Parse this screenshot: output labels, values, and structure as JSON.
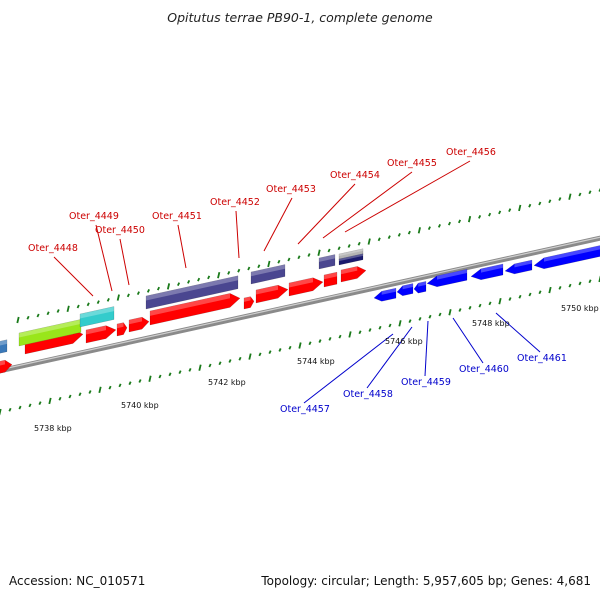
{
  "title": "Opitutus terrae PB90-1, complete genome",
  "accession_label": "Accession:",
  "accession_value": "NC_010571",
  "topology": {
    "label": "Topology:",
    "value": "circular",
    "length_label": "Length:",
    "length_value": "5,957,605 bp",
    "genes_label": "Genes:",
    "genes_value": "4,681"
  },
  "colors": {
    "forward_label": "#cc0000",
    "reverse_label": "#0000cc",
    "backbone": "#8a8a8a",
    "tick": "#1a7a1a",
    "red_gene": "#ff0000",
    "blue_gene": "#0000ff",
    "purple_gene": "#4a4690",
    "lime_gene": "#99e61a",
    "cyan_gene": "#33cccc",
    "steelblue_gene": "#3a78b8",
    "gray_gene": "#b4b4b4",
    "navy_gene": "#1a1a6e"
  },
  "scale": {
    "unit": "kbp",
    "labels": [
      {
        "kbp": 5738,
        "text": "5738 kbp"
      },
      {
        "kbp": 5740,
        "text": "5740 kbp"
      },
      {
        "kbp": 5742,
        "text": "5742 kbp"
      },
      {
        "kbp": 5744,
        "text": "5744 kbp"
      },
      {
        "kbp": 5746,
        "text": "5746 kbp"
      },
      {
        "kbp": 5748,
        "text": "5748 kbp"
      },
      {
        "kbp": 5750,
        "text": "5750 kbp"
      }
    ]
  },
  "forward_genes": [
    {
      "name": "Oter_4448"
    },
    {
      "name": "Oter_4449"
    },
    {
      "name": "Oter_4450"
    },
    {
      "name": "Oter_4451"
    },
    {
      "name": "Oter_4452"
    },
    {
      "name": "Oter_4453"
    },
    {
      "name": "Oter_4454"
    },
    {
      "name": "Oter_4455"
    },
    {
      "name": "Oter_4456"
    }
  ],
  "reverse_genes": [
    {
      "name": "Oter_4457"
    },
    {
      "name": "Oter_4458"
    },
    {
      "name": "Oter_4459"
    },
    {
      "name": "Oter_4460"
    },
    {
      "name": "Oter_4461"
    }
  ]
}
